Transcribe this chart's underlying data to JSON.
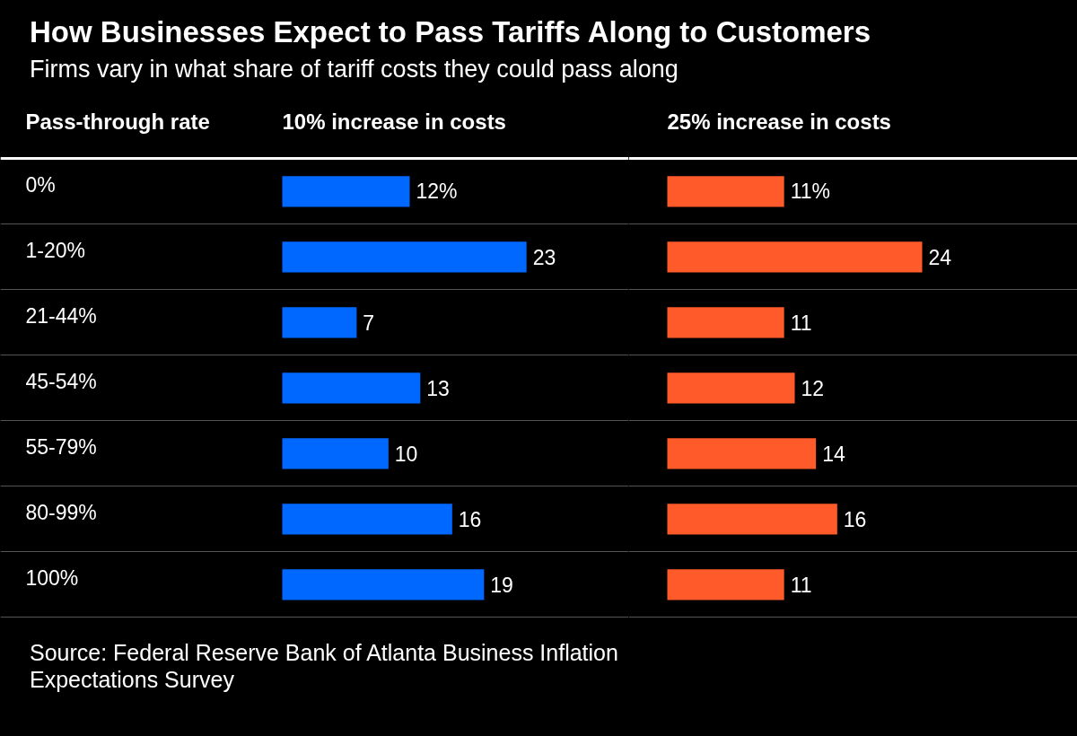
{
  "chart_data": [
    {
      "type": "bar",
      "orientation": "horizontal",
      "title": "How Businesses Expect to Pass Tariffs Along to Customers",
      "subtitle": "Firms vary in what share of tariff costs they could pass along",
      "ylabel": "Pass-through rate",
      "xlabel": "10% increase in costs",
      "categories": [
        "0%",
        "1-20%",
        "21-44%",
        "45-54%",
        "55-79%",
        "80-99%",
        "100%"
      ],
      "values": [
        12,
        23,
        7,
        13,
        10,
        16,
        19
      ],
      "value_labels": [
        "12%",
        "23",
        "7",
        "13",
        "10",
        "16",
        "19"
      ],
      "color": "#0068ff",
      "grid": "y",
      "annotations": [
        "Source: Federal Reserve Bank of Atlanta Business Inflation Expectations Survey"
      ]
    },
    {
      "type": "bar",
      "orientation": "horizontal",
      "xlabel": "25% increase in costs",
      "values": [
        11,
        24,
        11,
        12,
        14,
        16,
        11
      ],
      "value_labels": [
        "11%",
        "24",
        "11",
        "12",
        "14",
        "16",
        "11"
      ],
      "color": "#ff5a2a",
      "grid": "y"
    }
  ]
}
